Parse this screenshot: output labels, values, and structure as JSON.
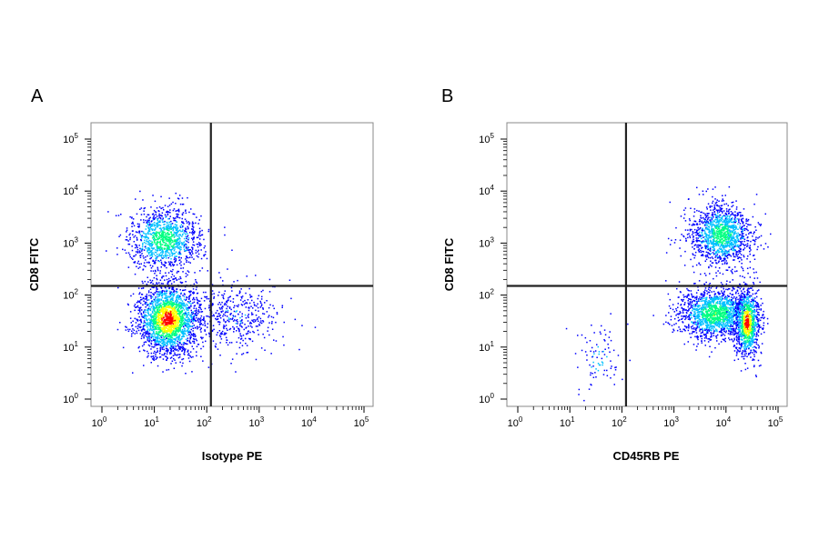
{
  "chart_data": [
    {
      "type": "scatter",
      "subtype": "flow-cytometry-density-dot-plot",
      "panel_label": "A",
      "xlabel": "Isotype PE",
      "ylabel": "CD8 FITC",
      "x_scale": "log",
      "y_scale": "log",
      "xlim": [
        1,
        100000
      ],
      "ylim": [
        1,
        100000
      ],
      "x_tick_labels": [
        "10^0",
        "10^1",
        "10^2",
        "10^3",
        "10^4",
        "10^5"
      ],
      "y_tick_labels": [
        "10^0",
        "10^1",
        "10^2",
        "10^3",
        "10^4",
        "10^5"
      ],
      "quadrant_gate": {
        "x": 120,
        "y": 150
      },
      "grid": false,
      "legend": "none",
      "density_colors": [
        "#0000ff",
        "#00c0ff",
        "#00ff80",
        "#ffff00",
        "#ff0000"
      ],
      "populations": [
        {
          "center_x": 15,
          "center_y": 1200,
          "spread_x_decades": 0.35,
          "spread_y_decades": 0.3,
          "events": 1100,
          "peak_density": 0.55
        },
        {
          "center_x": 18,
          "center_y": 35,
          "spread_x_decades": 0.3,
          "spread_y_decades": 0.35,
          "events": 2100,
          "peak_density": 1.0
        },
        {
          "center_x": 300,
          "center_y": 40,
          "spread_x_decades": 0.45,
          "spread_y_decades": 0.35,
          "events": 450,
          "peak_density": 0.1
        }
      ]
    },
    {
      "type": "scatter",
      "subtype": "flow-cytometry-density-dot-plot",
      "panel_label": "B",
      "xlabel": "CD45RB PE",
      "ylabel": "CD8 FITC",
      "x_scale": "log",
      "y_scale": "log",
      "xlim": [
        1,
        100000
      ],
      "ylim": [
        1,
        100000
      ],
      "x_tick_labels": [
        "10^0",
        "10^1",
        "10^2",
        "10^3",
        "10^4",
        "10^5"
      ],
      "y_tick_labels": [
        "10^0",
        "10^1",
        "10^2",
        "10^3",
        "10^4",
        "10^5"
      ],
      "quadrant_gate": {
        "x": 120,
        "y": 150
      },
      "grid": false,
      "legend": "none",
      "density_colors": [
        "#0000ff",
        "#00c0ff",
        "#00ff80",
        "#ffff00",
        "#ff0000"
      ],
      "populations": [
        {
          "center_x": 8000,
          "center_y": 1500,
          "spread_x_decades": 0.3,
          "spread_y_decades": 0.3,
          "events": 1300,
          "peak_density": 0.5
        },
        {
          "center_x": 6000,
          "center_y": 45,
          "spread_x_decades": 0.35,
          "spread_y_decades": 0.25,
          "events": 1500,
          "peak_density": 0.6
        },
        {
          "center_x": 25000,
          "center_y": 30,
          "spread_x_decades": 0.12,
          "spread_y_decades": 0.35,
          "events": 900,
          "peak_density": 1.0
        },
        {
          "center_x": 35,
          "center_y": 6,
          "spread_x_decades": 0.25,
          "spread_y_decades": 0.3,
          "events": 90,
          "peak_density": 0.15
        }
      ]
    }
  ]
}
